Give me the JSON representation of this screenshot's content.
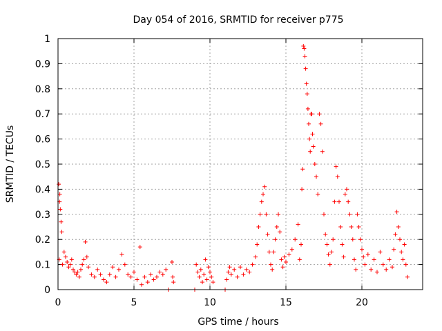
{
  "chart_data": {
    "type": "scatter",
    "title": "Day 054 of 2016, SRMTID for receiver p775",
    "xlabel": "GPS time / hours",
    "ylabel": "SRMTID / TECUs",
    "xlim": [
      0,
      24
    ],
    "ylim": [
      0,
      1
    ],
    "xticks": [
      0,
      5,
      10,
      15,
      20
    ],
    "xtick_labels": [
      "0",
      "5",
      "10",
      "15",
      "20"
    ],
    "yticks": [
      0,
      0.1,
      0.2,
      0.3,
      0.4,
      0.5,
      0.6,
      0.7,
      0.8,
      0.9,
      1
    ],
    "ytick_labels": [
      "0",
      "0.1",
      "0.2",
      "0.3",
      "0.4",
      "0.5",
      "0.6",
      "0.7",
      "0.8",
      "0.9",
      "1"
    ],
    "grid": true,
    "marker": "+",
    "color": "#ff0000",
    "series": [
      {
        "name": "SRMTID",
        "points": [
          [
            0.05,
            0.42
          ],
          [
            0.1,
            0.35
          ],
          [
            0.15,
            0.32
          ],
          [
            0.2,
            0.27
          ],
          [
            0.25,
            0.23
          ],
          [
            0.12,
            0.38
          ],
          [
            0.08,
            0.12
          ],
          [
            0.3,
            0.1
          ],
          [
            0.4,
            0.15
          ],
          [
            0.5,
            0.13
          ],
          [
            0.6,
            0.11
          ],
          [
            0.7,
            0.09
          ],
          [
            0.8,
            0.1
          ],
          [
            0.9,
            0.12
          ],
          [
            1.0,
            0.08
          ],
          [
            1.1,
            0.07
          ],
          [
            1.2,
            0.06
          ],
          [
            1.3,
            0.07
          ],
          [
            1.4,
            0.05
          ],
          [
            1.5,
            0.08
          ],
          [
            1.6,
            0.1
          ],
          [
            1.7,
            0.12
          ],
          [
            1.8,
            0.19
          ],
          [
            1.9,
            0.13
          ],
          [
            2.0,
            0.09
          ],
          [
            2.2,
            0.06
          ],
          [
            2.4,
            0.05
          ],
          [
            2.6,
            0.08
          ],
          [
            2.8,
            0.06
          ],
          [
            3.0,
            0.04
          ],
          [
            3.2,
            0.03
          ],
          [
            3.4,
            0.06
          ],
          [
            3.6,
            0.09
          ],
          [
            3.8,
            0.05
          ],
          [
            4.0,
            0.08
          ],
          [
            4.2,
            0.14
          ],
          [
            4.4,
            0.1
          ],
          [
            4.6,
            0.06
          ],
          [
            4.8,
            0.05
          ],
          [
            5.0,
            0.07
          ],
          [
            5.2,
            0.04
          ],
          [
            5.4,
            0.17
          ],
          [
            5.5,
            0.02
          ],
          [
            5.7,
            0.05
          ],
          [
            5.9,
            0.03
          ],
          [
            6.1,
            0.06
          ],
          [
            6.3,
            0.04
          ],
          [
            6.5,
            0.05
          ],
          [
            6.7,
            0.07
          ],
          [
            6.9,
            0.06
          ],
          [
            7.1,
            0.08
          ],
          [
            7.25,
            0.0
          ],
          [
            7.5,
            0.11
          ],
          [
            7.55,
            0.05
          ],
          [
            7.6,
            0.03
          ],
          [
            9.0,
            0.0
          ],
          [
            9.1,
            0.1
          ],
          [
            9.2,
            0.07
          ],
          [
            9.3,
            0.05
          ],
          [
            9.4,
            0.08
          ],
          [
            9.5,
            0.03
          ],
          [
            9.6,
            0.06
          ],
          [
            9.7,
            0.12
          ],
          [
            9.8,
            0.04
          ],
          [
            9.9,
            0.09
          ],
          [
            10.0,
            0.07
          ],
          [
            10.1,
            0.05
          ],
          [
            10.2,
            0.03
          ],
          [
            11.0,
            0.0
          ],
          [
            11.1,
            0.04
          ],
          [
            11.2,
            0.07
          ],
          [
            11.3,
            0.09
          ],
          [
            11.4,
            0.06
          ],
          [
            11.6,
            0.08
          ],
          [
            11.8,
            0.05
          ],
          [
            12.0,
            0.09
          ],
          [
            12.2,
            0.06
          ],
          [
            12.4,
            0.08
          ],
          [
            12.6,
            0.07
          ],
          [
            12.8,
            0.1
          ],
          [
            13.0,
            0.13
          ],
          [
            13.1,
            0.18
          ],
          [
            13.2,
            0.25
          ],
          [
            13.3,
            0.3
          ],
          [
            13.4,
            0.35
          ],
          [
            13.5,
            0.38
          ],
          [
            13.6,
            0.41
          ],
          [
            13.7,
            0.3
          ],
          [
            13.8,
            0.22
          ],
          [
            13.9,
            0.15
          ],
          [
            14.0,
            0.1
          ],
          [
            14.1,
            0.08
          ],
          [
            14.2,
            0.15
          ],
          [
            14.3,
            0.2
          ],
          [
            14.4,
            0.25
          ],
          [
            14.5,
            0.3
          ],
          [
            14.6,
            0.23
          ],
          [
            14.7,
            0.12
          ],
          [
            14.8,
            0.09
          ],
          [
            14.9,
            0.13
          ],
          [
            15.0,
            0.11
          ],
          [
            15.2,
            0.14
          ],
          [
            15.4,
            0.16
          ],
          [
            15.6,
            0.2
          ],
          [
            15.8,
            0.26
          ],
          [
            15.9,
            0.12
          ],
          [
            16.0,
            0.18
          ],
          [
            16.05,
            0.4
          ],
          [
            16.1,
            0.48
          ],
          [
            16.15,
            0.97
          ],
          [
            16.2,
            0.96
          ],
          [
            16.25,
            0.93
          ],
          [
            16.3,
            0.88
          ],
          [
            16.35,
            0.82
          ],
          [
            16.4,
            0.78
          ],
          [
            16.45,
            0.72
          ],
          [
            16.5,
            0.66
          ],
          [
            16.55,
            0.6
          ],
          [
            16.6,
            0.55
          ],
          [
            16.65,
            0.7
          ],
          [
            16.7,
            0.7
          ],
          [
            16.75,
            0.62
          ],
          [
            16.8,
            0.57
          ],
          [
            16.9,
            0.5
          ],
          [
            17.0,
            0.45
          ],
          [
            17.1,
            0.38
          ],
          [
            17.2,
            0.7
          ],
          [
            17.3,
            0.66
          ],
          [
            17.4,
            0.55
          ],
          [
            17.5,
            0.3
          ],
          [
            17.6,
            0.22
          ],
          [
            17.7,
            0.18
          ],
          [
            17.8,
            0.14
          ],
          [
            17.9,
            0.1
          ],
          [
            18.0,
            0.15
          ],
          [
            18.1,
            0.2
          ],
          [
            18.2,
            0.35
          ],
          [
            18.3,
            0.49
          ],
          [
            18.4,
            0.45
          ],
          [
            18.5,
            0.35
          ],
          [
            18.6,
            0.25
          ],
          [
            18.7,
            0.18
          ],
          [
            18.8,
            0.13
          ],
          [
            18.9,
            0.38
          ],
          [
            19.0,
            0.4
          ],
          [
            19.1,
            0.35
          ],
          [
            19.2,
            0.3
          ],
          [
            19.3,
            0.25
          ],
          [
            19.4,
            0.2
          ],
          [
            19.5,
            0.12
          ],
          [
            19.6,
            0.08
          ],
          [
            19.7,
            0.3
          ],
          [
            19.8,
            0.25
          ],
          [
            19.9,
            0.2
          ],
          [
            20.0,
            0.16
          ],
          [
            20.1,
            0.13
          ],
          [
            20.2,
            0.1
          ],
          [
            20.4,
            0.14
          ],
          [
            20.6,
            0.08
          ],
          [
            20.8,
            0.12
          ],
          [
            21.0,
            0.07
          ],
          [
            21.2,
            0.15
          ],
          [
            21.4,
            0.1
          ],
          [
            21.6,
            0.08
          ],
          [
            21.8,
            0.12
          ],
          [
            22.0,
            0.09
          ],
          [
            22.1,
            0.16
          ],
          [
            22.2,
            0.22
          ],
          [
            22.3,
            0.31
          ],
          [
            22.4,
            0.25
          ],
          [
            22.5,
            0.2
          ],
          [
            22.6,
            0.15
          ],
          [
            22.7,
            0.12
          ],
          [
            22.8,
            0.18
          ],
          [
            22.9,
            0.1
          ],
          [
            23.0,
            0.05
          ]
        ]
      }
    ]
  }
}
